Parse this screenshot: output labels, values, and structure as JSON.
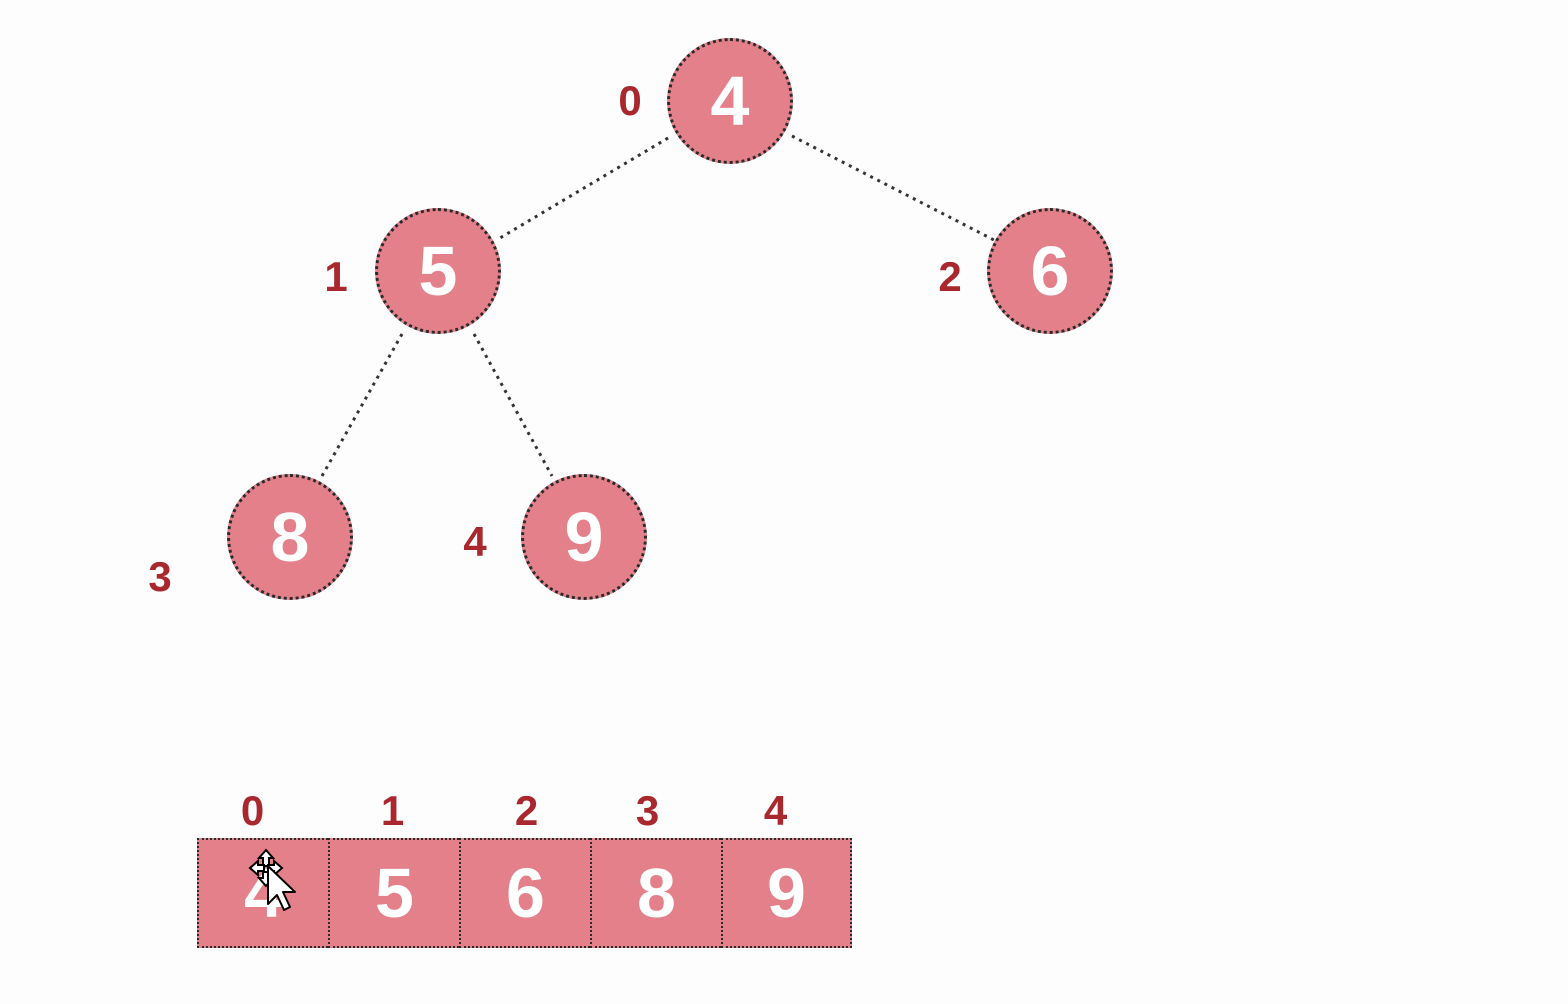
{
  "tree": {
    "nodes": [
      {
        "index": "0",
        "value": "4"
      },
      {
        "index": "1",
        "value": "5"
      },
      {
        "index": "2",
        "value": "6"
      },
      {
        "index": "3",
        "value": "8"
      },
      {
        "index": "4",
        "value": "9"
      }
    ],
    "edges": [
      {
        "from": 0,
        "to": 1
      },
      {
        "from": 0,
        "to": 2
      },
      {
        "from": 1,
        "to": 3
      },
      {
        "from": 1,
        "to": 4
      }
    ]
  },
  "array": {
    "cells": [
      {
        "index": "0",
        "value": "4"
      },
      {
        "index": "1",
        "value": "5"
      },
      {
        "index": "2",
        "value": "6"
      },
      {
        "index": "3",
        "value": "8"
      },
      {
        "index": "4",
        "value": "9"
      }
    ]
  },
  "colors": {
    "node_fill": "#e4808a",
    "index_text": "#a8282e",
    "value_text": "#ffffff",
    "dotted_outline": "#2a2a2a"
  },
  "cursor": {
    "icon": "move-cursor-icon"
  }
}
